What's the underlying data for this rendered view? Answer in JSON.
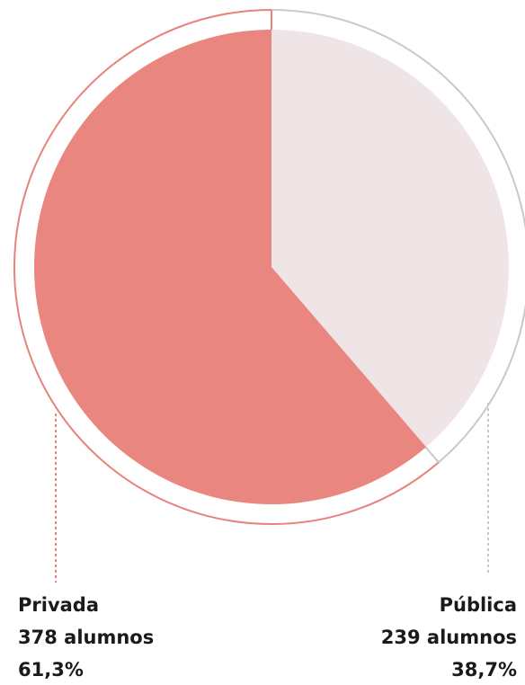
{
  "chart_data": {
    "type": "pie",
    "categories": [
      "Pública",
      "Privada"
    ],
    "values": [
      38.7,
      61.3
    ],
    "value_labels": [
      "38,7%",
      "61,3%"
    ],
    "counts": [
      239,
      378
    ],
    "count_labels": [
      "239 alumnos",
      "378 alumnos"
    ],
    "colors": [
      "#efe5e6",
      "#ea8680"
    ],
    "ring_colors": [
      "#c9c9c9",
      "#e8837c"
    ]
  }
}
